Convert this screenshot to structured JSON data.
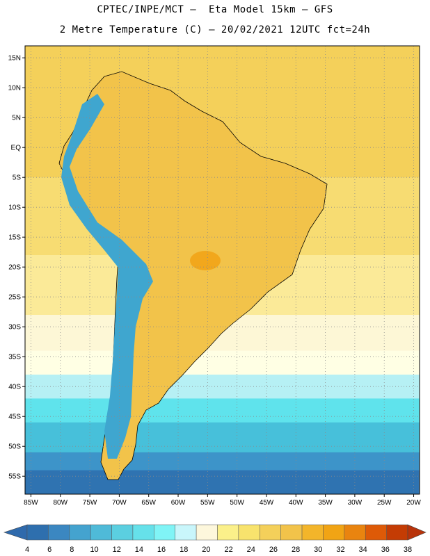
{
  "header": {
    "line1": "CPTEC/INPE/MCT –  Eta Model 15km – GFS",
    "line2": "2 Metre Temperature (C) – 20/02/2021 12UTC fct=24h"
  },
  "map": {
    "lon_range": [
      -86,
      -19
    ],
    "lat_range": [
      -58,
      17
    ],
    "lon_ticks": [
      "85W",
      "80W",
      "75W",
      "70W",
      "65W",
      "60W",
      "55W",
      "50W",
      "45W",
      "40W",
      "35W",
      "30W",
      "25W",
      "20W"
    ],
    "lat_ticks": [
      "15N",
      "10N",
      "5N",
      "EQ",
      "5S",
      "10S",
      "15S",
      "20S",
      "25S",
      "30S",
      "35S",
      "40S",
      "45S",
      "50S",
      "55S"
    ],
    "ocean_bands": [
      {
        "lat": 17,
        "color": "#f4d05a"
      },
      {
        "lat": -5,
        "color": "#f7dc72"
      },
      {
        "lat": -18,
        "color": "#fbea98"
      },
      {
        "lat": -28,
        "color": "#fdf7d6"
      },
      {
        "lat": -34,
        "color": "#ffffe4"
      },
      {
        "lat": -38,
        "color": "#b6f0f4"
      },
      {
        "lat": -42,
        "color": "#5fe3ec"
      },
      {
        "lat": -46,
        "color": "#47c0da"
      },
      {
        "lat": -51,
        "color": "#3d94c9"
      },
      {
        "lat": -54,
        "color": "#2f73b1"
      },
      {
        "lat": -58,
        "color": "#2f73b1"
      }
    ],
    "land_color": "#f2c34a",
    "andes_color": "#3fa6cf"
  },
  "colorbar": {
    "labels": [
      "4",
      "6",
      "8",
      "10",
      "12",
      "14",
      "16",
      "18",
      "20",
      "22",
      "24",
      "26",
      "28",
      "30",
      "32",
      "34",
      "36",
      "38"
    ],
    "colors": [
      "#2e6fae",
      "#3b87c1",
      "#44a3cf",
      "#4fbad8",
      "#5bcfe0",
      "#66e1ea",
      "#80f4f6",
      "#c9f6fb",
      "#fdf7dc",
      "#fbf08a",
      "#f8e36d",
      "#f4d05a",
      "#f2c34a",
      "#f3b52a",
      "#f1a414",
      "#e9840f",
      "#de5a07",
      "#c43c04"
    ],
    "left_color": "#2f6aac",
    "right_color": "#b8330a"
  }
}
